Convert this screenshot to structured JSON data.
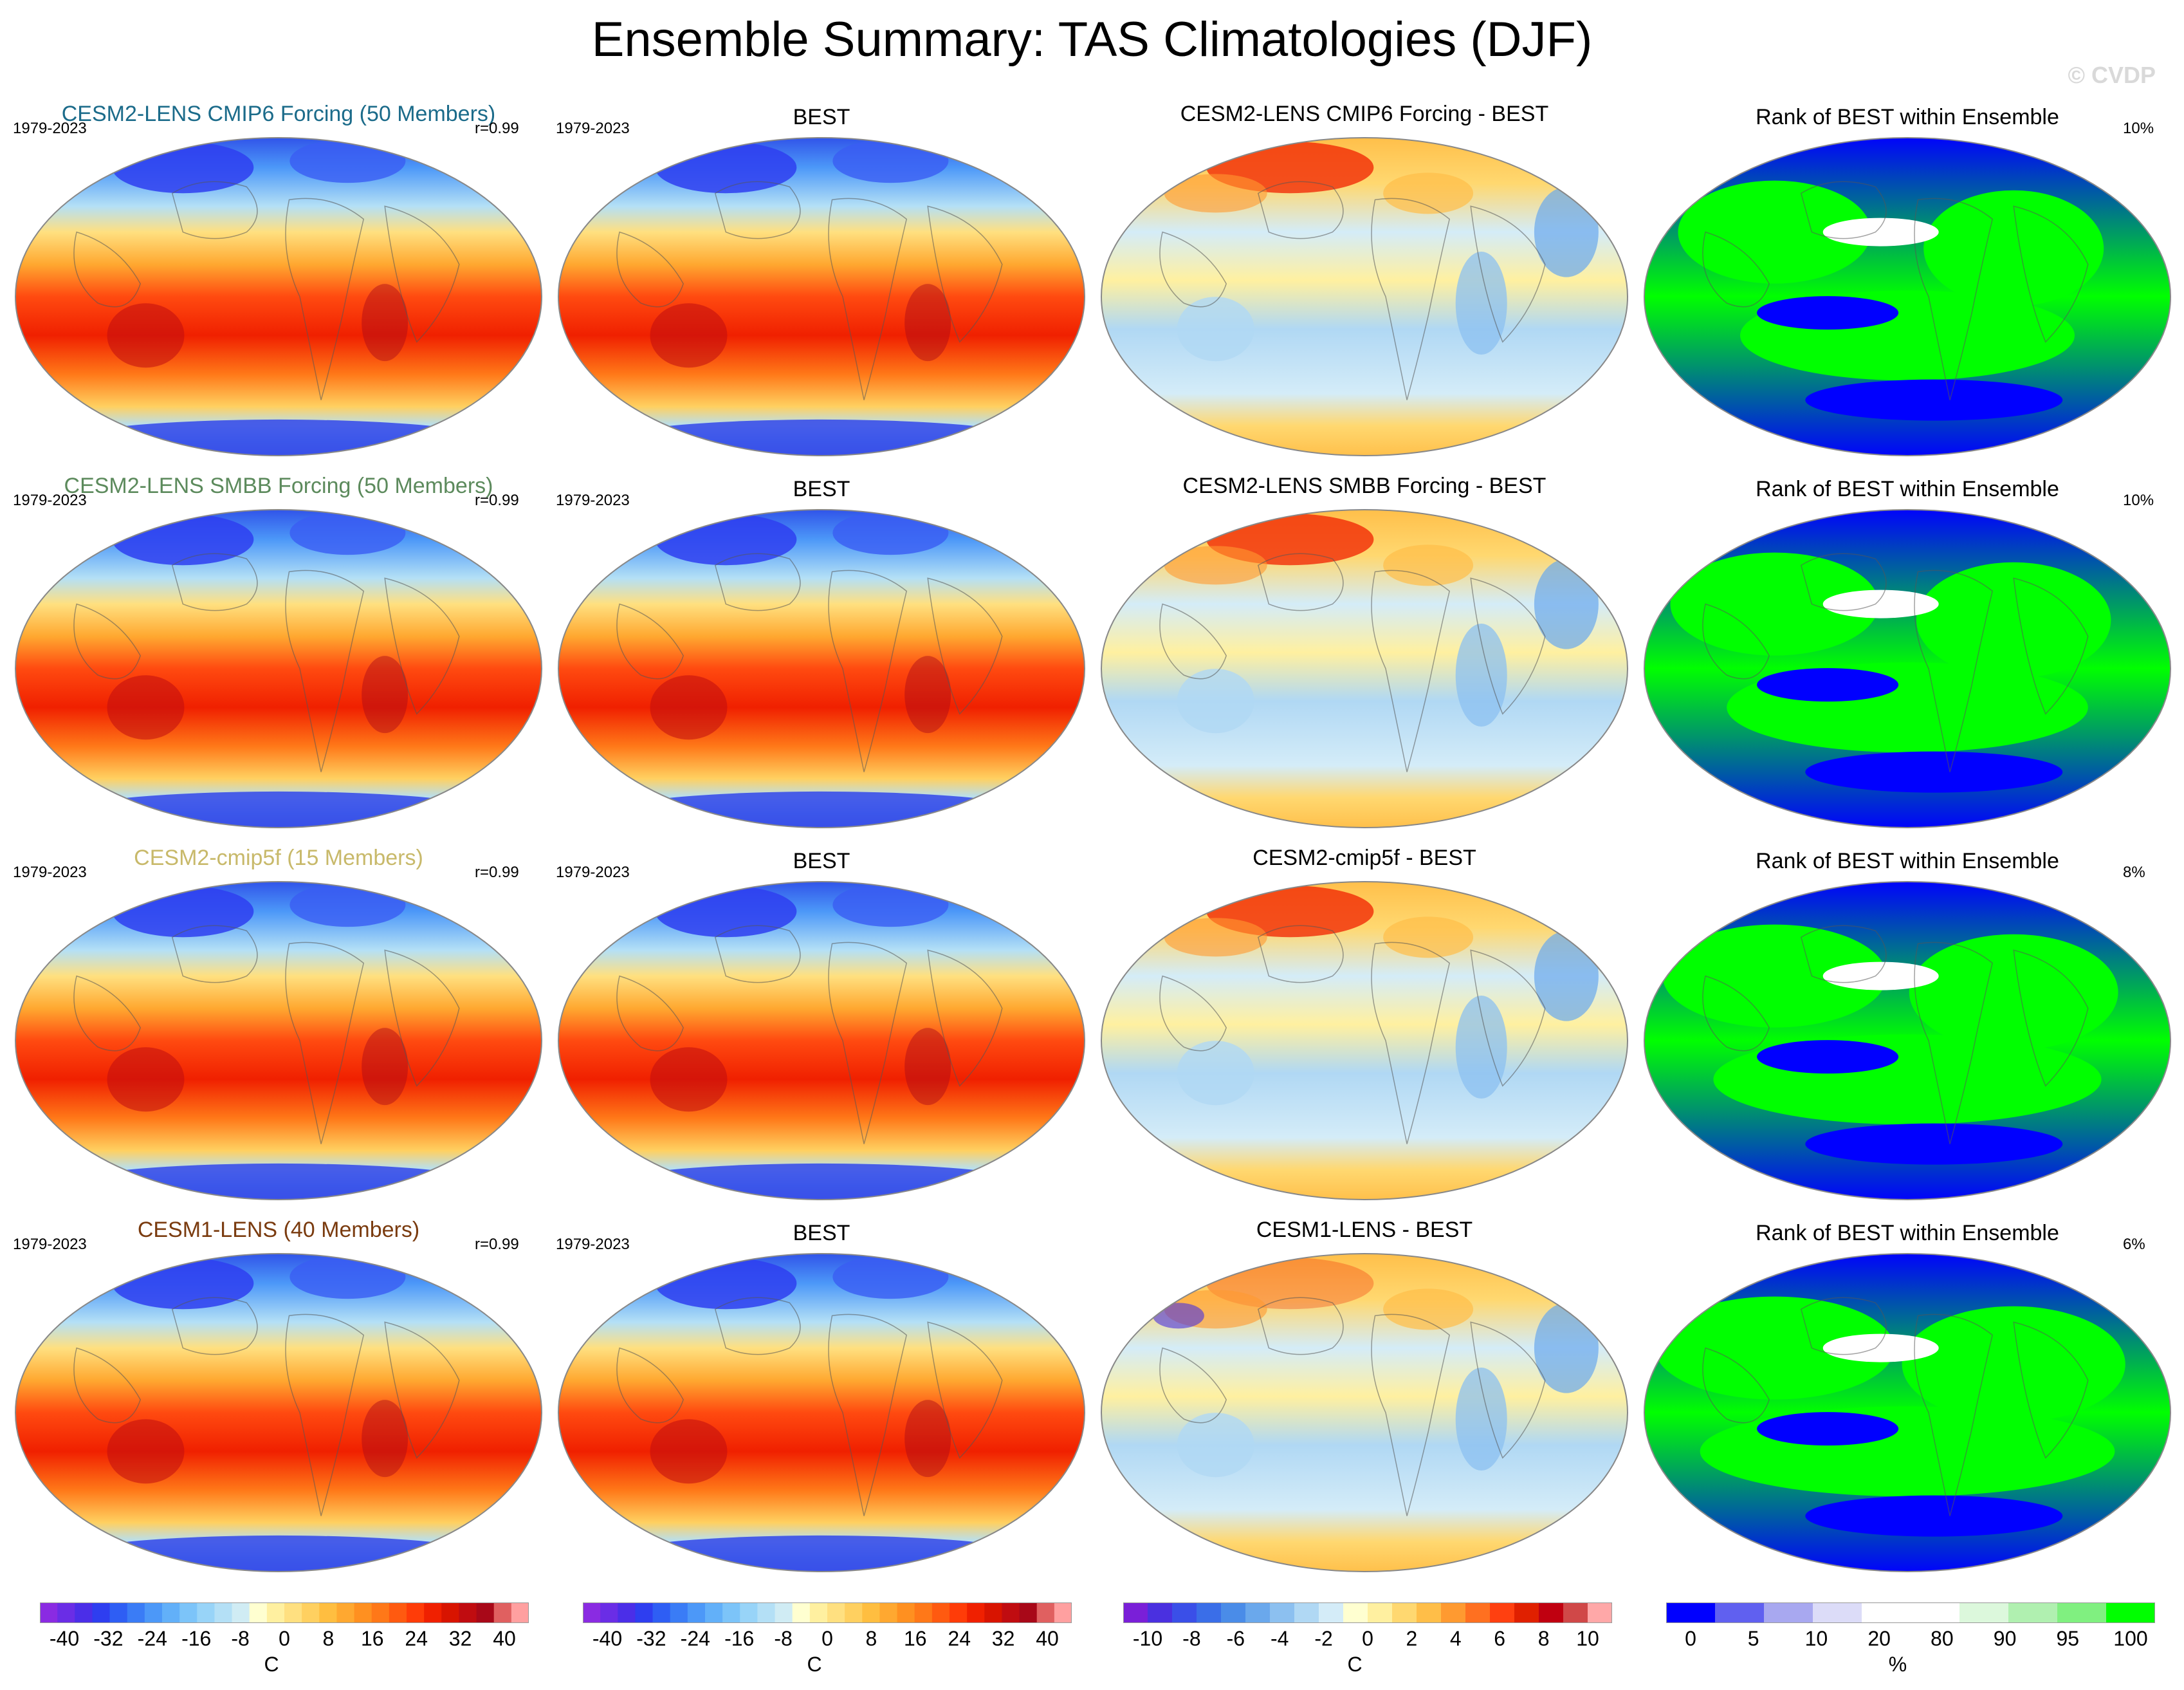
{
  "title": "Ensemble Summary: TAS Climatologies (DJF)",
  "watermark": "© CVDP",
  "rows": [
    {
      "model_title": "CESM2-LENS CMIP6 Forcing (50 Members)",
      "model_color": "#1b6b8a",
      "model_period": "1979-2023",
      "model_r": "r=0.99",
      "obs_title": "BEST",
      "obs_period": "1979-2023",
      "diff_title": "CESM2-LENS CMIP6 Forcing - BEST",
      "rank_title": "Rank of BEST within Ensemble",
      "rank_pct": "10%",
      "rank_pct_value": 10
    },
    {
      "model_title": "CESM2-LENS SMBB Forcing (50 Members)",
      "model_color": "#5c8a5c",
      "model_period": "1979-2023",
      "model_r": "r=0.99",
      "obs_title": "BEST",
      "obs_period": "1979-2023",
      "diff_title": "CESM2-LENS SMBB Forcing - BEST",
      "rank_title": "Rank of BEST within Ensemble",
      "rank_pct": "10%",
      "rank_pct_value": 10
    },
    {
      "model_title": "CESM2-cmip5f (15 Members)",
      "model_color": "#c8b96a",
      "model_period": "1979-2023",
      "model_r": "r=0.99",
      "obs_title": "BEST",
      "obs_period": "1979-2023",
      "diff_title": "CESM2-cmip5f - BEST",
      "rank_title": "Rank of BEST within Ensemble",
      "rank_pct": "8%",
      "rank_pct_value": 8
    },
    {
      "model_title": "CESM1-LENS (40 Members)",
      "model_color": "#7a3b0f",
      "model_period": "1979-2023",
      "model_r": "r=0.99",
      "obs_title": "BEST",
      "obs_period": "1979-2023",
      "diff_title": "CESM1-LENS - BEST",
      "rank_title": "Rank of BEST within Ensemble",
      "rank_pct": "6%",
      "rank_pct_value": 6
    }
  ],
  "colorbars": [
    {
      "unit": "C",
      "ticks": [
        "-40",
        "-32",
        "-24",
        "-16",
        "-8",
        "0",
        "8",
        "16",
        "24",
        "32",
        "40"
      ],
      "range": [
        -40,
        40
      ],
      "colors": [
        "#8a2be2",
        "#6a2de6",
        "#4b2ee8",
        "#2e3ef0",
        "#2e5ef4",
        "#3a7cf6",
        "#4c98f8",
        "#62b0f9",
        "#7cc4f9",
        "#98d4f8",
        "#b4e0f6",
        "#d0ecf4",
        "#ffffd0",
        "#fff0a0",
        "#ffe080",
        "#ffd060",
        "#ffbe40",
        "#ffa830",
        "#ff9020",
        "#ff7818",
        "#ff5a10",
        "#ff3c08",
        "#f02000",
        "#d81400",
        "#c00c10",
        "#a80818",
        "#e06060",
        "#ffa0a0"
      ]
    },
    {
      "unit": "C",
      "ticks": [
        "-40",
        "-32",
        "-24",
        "-16",
        "-8",
        "0",
        "8",
        "16",
        "24",
        "32",
        "40"
      ],
      "range": [
        -40,
        40
      ],
      "colors": [
        "#8a2be2",
        "#6a2de6",
        "#4b2ee8",
        "#2e3ef0",
        "#2e5ef4",
        "#3a7cf6",
        "#4c98f8",
        "#62b0f9",
        "#7cc4f9",
        "#98d4f8",
        "#b4e0f6",
        "#d0ecf4",
        "#ffffd0",
        "#fff0a0",
        "#ffe080",
        "#ffd060",
        "#ffbe40",
        "#ffa830",
        "#ff9020",
        "#ff7818",
        "#ff5a10",
        "#ff3c08",
        "#f02000",
        "#d81400",
        "#c00c10",
        "#a80818",
        "#e06060",
        "#ffa0a0"
      ]
    },
    {
      "unit": "C",
      "ticks": [
        "-10",
        "-8",
        "-6",
        "-4",
        "-2",
        "0",
        "2",
        "4",
        "6",
        "8",
        "10"
      ],
      "range": [
        -10,
        10
      ],
      "colors": [
        "#7a1fd8",
        "#4a30e0",
        "#3a4fe8",
        "#3a6ee8",
        "#4a8ce8",
        "#6aa8ec",
        "#8cc0f0",
        "#b0d8f4",
        "#d4ecf8",
        "#ffffd0",
        "#fff0a0",
        "#ffd870",
        "#ffbe48",
        "#ff9a30",
        "#ff7020",
        "#ff4010",
        "#e02000",
        "#c00010",
        "#d04848",
        "#ffa8a8"
      ]
    },
    {
      "unit": "%",
      "ticks": [
        "0",
        "5",
        "10",
        "20",
        "80",
        "90",
        "95",
        "100"
      ],
      "range": [
        0,
        100
      ],
      "colors": [
        "#0000ff",
        "#6060f0",
        "#a8a8f0",
        "#dcdcf8",
        "#ffffff",
        "#ffffff",
        "#dcf8dc",
        "#b0f0b0",
        "#80f080",
        "#00ff00"
      ]
    }
  ],
  "chart_data": [
    {
      "type": "heatmap",
      "title": "CESM2-LENS CMIP6 Forcing (50 Members)",
      "period": "1979-2023",
      "pattern_correlation": 0.99,
      "variable": "TAS",
      "season": "DJF",
      "unit": "C",
      "range": [
        -40,
        40
      ]
    },
    {
      "type": "heatmap",
      "title": "BEST",
      "period": "1979-2023",
      "variable": "TAS",
      "season": "DJF",
      "unit": "C",
      "range": [
        -40,
        40
      ]
    },
    {
      "type": "heatmap",
      "title": "CESM2-LENS CMIP6 Forcing - BEST",
      "unit": "C",
      "range": [
        -10,
        10
      ]
    },
    {
      "type": "heatmap",
      "title": "Rank of BEST within Ensemble",
      "unit": "%",
      "range": [
        0,
        100
      ],
      "percent_annotation": 10
    },
    {
      "type": "heatmap",
      "title": "CESM2-LENS SMBB Forcing (50 Members)",
      "period": "1979-2023",
      "pattern_correlation": 0.99,
      "unit": "C",
      "range": [
        -40,
        40
      ]
    },
    {
      "type": "heatmap",
      "title": "BEST",
      "period": "1979-2023",
      "unit": "C",
      "range": [
        -40,
        40
      ]
    },
    {
      "type": "heatmap",
      "title": "CESM2-LENS SMBB Forcing - BEST",
      "unit": "C",
      "range": [
        -10,
        10
      ]
    },
    {
      "type": "heatmap",
      "title": "Rank of BEST within Ensemble",
      "unit": "%",
      "range": [
        0,
        100
      ],
      "percent_annotation": 10
    },
    {
      "type": "heatmap",
      "title": "CESM2-cmip5f (15 Members)",
      "period": "1979-2023",
      "pattern_correlation": 0.99,
      "unit": "C",
      "range": [
        -40,
        40
      ]
    },
    {
      "type": "heatmap",
      "title": "BEST",
      "period": "1979-2023",
      "unit": "C",
      "range": [
        -40,
        40
      ]
    },
    {
      "type": "heatmap",
      "title": "CESM2-cmip5f - BEST",
      "unit": "C",
      "range": [
        -10,
        10
      ]
    },
    {
      "type": "heatmap",
      "title": "Rank of BEST within Ensemble",
      "unit": "%",
      "range": [
        0,
        100
      ],
      "percent_annotation": 8
    },
    {
      "type": "heatmap",
      "title": "CESM1-LENS (40 Members)",
      "period": "1979-2023",
      "pattern_correlation": 0.99,
      "unit": "C",
      "range": [
        -40,
        40
      ]
    },
    {
      "type": "heatmap",
      "title": "BEST",
      "period": "1979-2023",
      "unit": "C",
      "range": [
        -40,
        40
      ]
    },
    {
      "type": "heatmap",
      "title": "CESM1-LENS - BEST",
      "unit": "C",
      "range": [
        -10,
        10
      ]
    },
    {
      "type": "heatmap",
      "title": "Rank of BEST within Ensemble",
      "unit": "%",
      "range": [
        0,
        100
      ],
      "percent_annotation": 6
    }
  ]
}
